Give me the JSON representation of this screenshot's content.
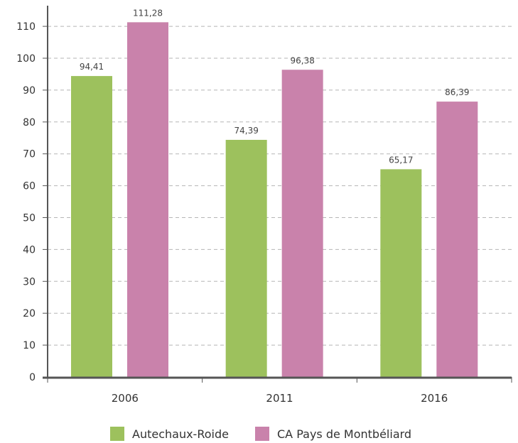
{
  "chart_data": {
    "type": "bar",
    "categories": [
      "2006",
      "2011",
      "2016"
    ],
    "series": [
      {
        "name": "Autechaux-Roide",
        "color": "#9dc15d",
        "values": [
          94.41,
          74.39,
          65.17
        ],
        "labels": [
          "94,41",
          "74,39",
          "65,17"
        ]
      },
      {
        "name": "CA Pays de Montbéliard",
        "color": "#c982ab",
        "values": [
          111.28,
          96.38,
          86.39
        ],
        "labels": [
          "111,28",
          "96,38",
          "86,39"
        ]
      }
    ],
    "yticks": [
      0,
      10,
      20,
      30,
      40,
      50,
      60,
      70,
      80,
      90,
      100,
      110
    ],
    "ylim": [
      0,
      120
    ],
    "grid": true,
    "legend": "bottom",
    "title": "",
    "xlabel": "",
    "ylabel": ""
  }
}
